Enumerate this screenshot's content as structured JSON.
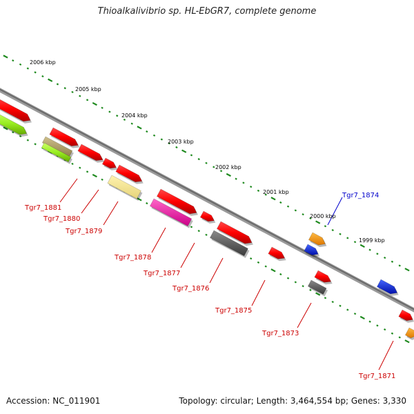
{
  "header": {
    "title": "Thioalkalivibrio sp. HL-EbGR7, complete genome"
  },
  "footer": {
    "accession": "Accession: NC_011901",
    "summary": "Topology: circular; Length: 3,464,554 bp; Genes: 3,330"
  },
  "colors": {
    "label_red": "#cc0000",
    "label_blue": "#0000cc",
    "tick_green": "#1f8a1f",
    "backbone": "#808080"
  },
  "scale_ticks": [
    {
      "label": "2006 kbp"
    },
    {
      "label": "2005 kbp"
    },
    {
      "label": "2004 kbp"
    },
    {
      "label": "2003 kbp"
    },
    {
      "label": "2002 kbp"
    },
    {
      "label": "2001 kbp"
    },
    {
      "label": "2000 kbp"
    },
    {
      "label": "1999 kbp"
    }
  ],
  "genes": [
    {
      "label": "Tgr7_1881",
      "color": "red"
    },
    {
      "label": "Tgr7_1880",
      "color": "red"
    },
    {
      "label": "Tgr7_1879",
      "color": "red"
    },
    {
      "label": "Tgr7_1878",
      "color": "red"
    },
    {
      "label": "Tgr7_1877",
      "color": "red"
    },
    {
      "label": "Tgr7_1876",
      "color": "red"
    },
    {
      "label": "Tgr7_1875",
      "color": "red"
    },
    {
      "label": "Tgr7_1874",
      "color": "blue"
    },
    {
      "label": "Tgr7_1873",
      "color": "red"
    },
    {
      "label": "Tgr7_1871",
      "color": "red"
    }
  ]
}
